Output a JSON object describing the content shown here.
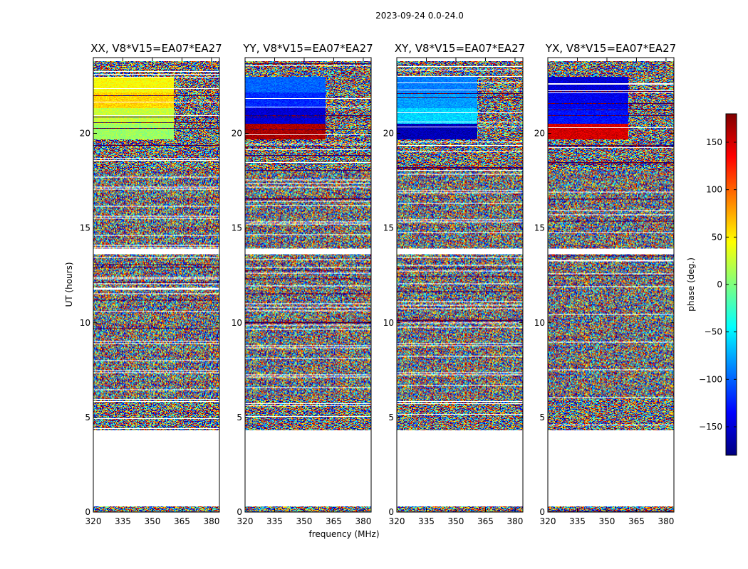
{
  "chart_data": {
    "type": "heatmap",
    "suptitle": "2023-09-24 0.0-24.0",
    "xlabel": "frequency (MHz)",
    "ylabel": "UT (hours)",
    "xlim": [
      320,
      384
    ],
    "ylim": [
      0,
      24
    ],
    "xticks": [
      320,
      335,
      350,
      365,
      380
    ],
    "yticks": [
      0,
      5,
      10,
      15,
      20
    ],
    "colorbar": {
      "label": "phase (deg.)",
      "range": [
        -180,
        180
      ],
      "ticks": [
        150,
        100,
        50,
        0,
        -50,
        -100,
        -150
      ],
      "colormap": "jet",
      "colors": [
        "#00007f",
        "#0000ff",
        "#007fff",
        "#00ffff",
        "#7fff7f",
        "#ffff00",
        "#ff7f00",
        "#ff0000",
        "#7f0000"
      ]
    },
    "data_blocks_ut_hours": [
      [
        0.0,
        0.3
      ],
      [
        4.3,
        13.6
      ],
      [
        13.9,
        23.8
      ]
    ],
    "coherent_block": {
      "ut_range": [
        19.7,
        23.0
      ],
      "freq_range": [
        320,
        361
      ]
    },
    "panels": [
      {
        "title": "XX, V8*V15=EA07*EA27",
        "coherent_phase_deg": [
          10,
          25,
          60,
          45
        ]
      },
      {
        "title": "YY, V8*V15=EA07*EA27",
        "coherent_phase_deg": [
          165,
          -150,
          -120,
          -100
        ]
      },
      {
        "title": "XY, V8*V15=EA07*EA27",
        "coherent_phase_deg": [
          -160,
          -60,
          -80,
          -90
        ]
      },
      {
        "title": "YX, V8*V15=EA07*EA27",
        "coherent_phase_deg": [
          150,
          -130,
          -140,
          -150
        ]
      }
    ]
  }
}
